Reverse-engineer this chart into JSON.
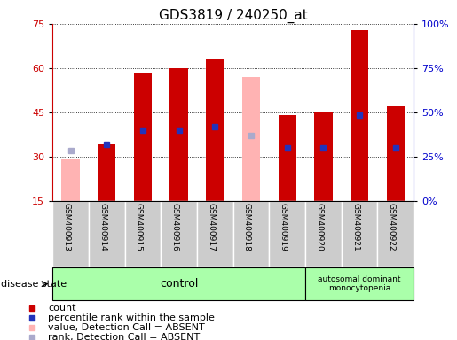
{
  "title": "GDS3819 / 240250_at",
  "samples": [
    "GSM400913",
    "GSM400914",
    "GSM400915",
    "GSM400916",
    "GSM400917",
    "GSM400918",
    "GSM400919",
    "GSM400920",
    "GSM400921",
    "GSM400922"
  ],
  "red_bar": [
    null,
    34,
    58,
    60,
    63,
    null,
    44,
    45,
    73,
    47
  ],
  "pink_bar": [
    29,
    null,
    null,
    null,
    null,
    57,
    null,
    null,
    null,
    null
  ],
  "blue_marker": [
    null,
    34,
    39,
    39,
    40,
    null,
    33,
    33,
    44,
    33
  ],
  "lightblue_marker": [
    32,
    null,
    null,
    null,
    null,
    37,
    null,
    null,
    null,
    null
  ],
  "ymin": 15,
  "ymax": 75,
  "yticks_left": [
    15,
    30,
    45,
    60,
    75
  ],
  "yticks_right": [
    0,
    25,
    50,
    75,
    100
  ],
  "ytick_labels_right": [
    "0%",
    "25%",
    "50%",
    "75%",
    "100%"
  ],
  "bar_width": 0.5,
  "red_color": "#cc0000",
  "pink_color": "#ffb3b3",
  "blue_color": "#2233bb",
  "lightblue_color": "#aaaacc",
  "control_n": 7,
  "control_label": "control",
  "disease_label": "autosomal dominant\nmonocytopenia",
  "disease_state_label": "disease state",
  "legend_items": [
    "count",
    "percentile rank within the sample",
    "value, Detection Call = ABSENT",
    "rank, Detection Call = ABSENT"
  ],
  "legend_colors": [
    "#cc0000",
    "#2233bb",
    "#ffb3b3",
    "#aaaacc"
  ],
  "left_color": "#cc0000",
  "right_color": "#0000cc",
  "title_fontsize": 11,
  "tick_fontsize": 8,
  "legend_fontsize": 8,
  "xtick_fontsize": 6.5
}
